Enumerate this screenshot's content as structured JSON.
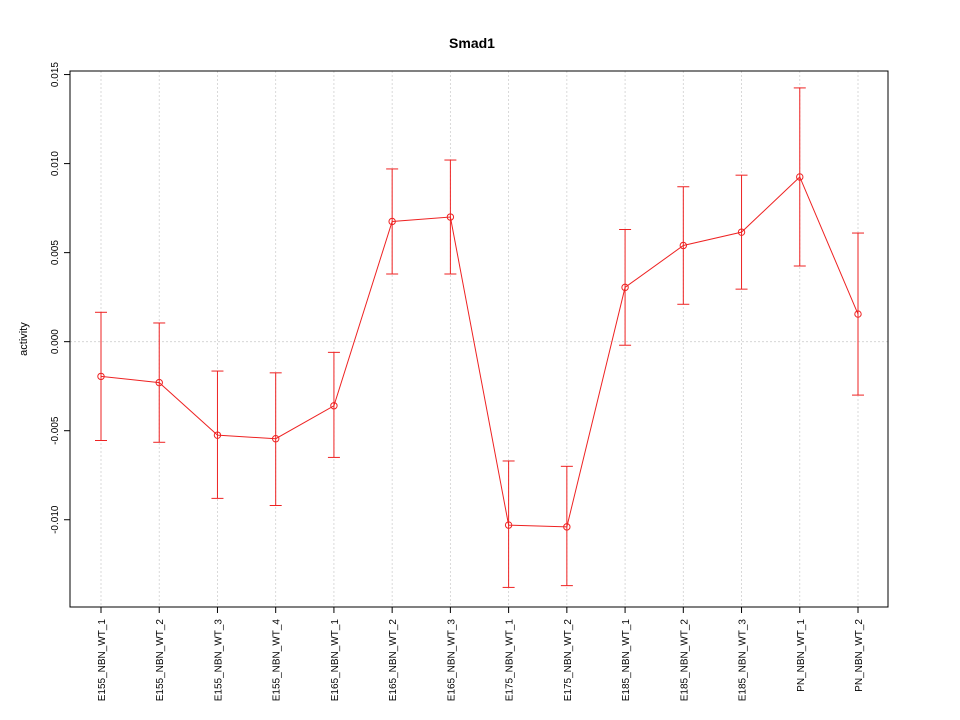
{
  "chart_data": {
    "type": "line",
    "title": "Smad1",
    "xlabel": "",
    "ylabel": "activity",
    "categories": [
      "E155_NBN_WT_1",
      "E155_NBN_WT_2",
      "E155_NBN_WT_3",
      "E155_NBN_WT_4",
      "E165_NBN_WT_1",
      "E165_NBN_WT_2",
      "E165_NBN_WT_3",
      "E175_NBN_WT_1",
      "E175_NBN_WT_2",
      "E185_NBN_WT_1",
      "E185_NBN_WT_2",
      "E185_NBN_WT_3",
      "PN_NBN_WT_1",
      "PN_NBN_WT_2"
    ],
    "values": [
      -0.00195,
      -0.0023,
      -0.00525,
      -0.00545,
      -0.0036,
      0.00675,
      0.007,
      -0.0103,
      -0.0104,
      0.00305,
      0.0054,
      0.00615,
      0.00925,
      0.00155
    ],
    "upper": [
      0.00165,
      0.00105,
      -0.00165,
      -0.00175,
      -0.0006,
      0.0097,
      0.0102,
      -0.0067,
      -0.007,
      0.0063,
      0.0087,
      0.00935,
      0.01425,
      0.0061
    ],
    "lower": [
      -0.00555,
      -0.00565,
      -0.0088,
      -0.0092,
      -0.0065,
      0.0038,
      0.0038,
      -0.0138,
      -0.0137,
      -0.0002,
      0.0021,
      0.00295,
      0.00425,
      -0.003
    ],
    "ylim": [
      -0.0149,
      0.0152
    ],
    "yticks": [
      -0.01,
      -0.005,
      0.0,
      0.005,
      0.01,
      0.015
    ],
    "ytick_labels": [
      "-0.010",
      "-0.005",
      "0.000",
      "0.005",
      "0.010",
      "0.015"
    ],
    "grid": true,
    "reference_line": 0.0,
    "color": "#ee2222"
  }
}
